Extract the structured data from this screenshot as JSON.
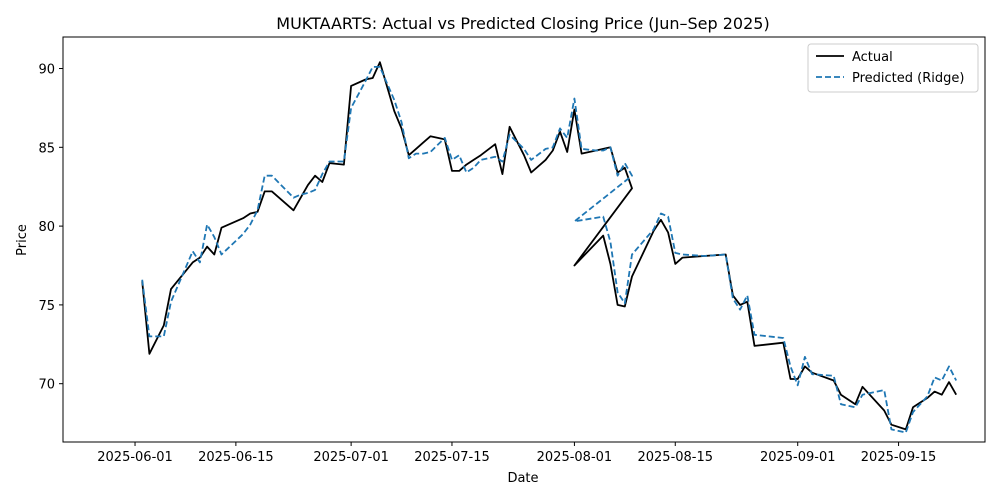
{
  "chart_data": {
    "type": "line",
    "title": "MUKTAARTS: Actual vs Predicted Closing Price (Jun–Sep 2025)",
    "xlabel": "Date",
    "ylabel": "Price",
    "x_ticks": [
      "2025-06-01",
      "2025-06-15",
      "2025-07-01",
      "2025-07-15",
      "2025-08-01",
      "2025-08-15",
      "2025-09-01",
      "2025-09-15"
    ],
    "y_ticks": [
      70,
      75,
      80,
      85,
      90
    ],
    "xlim": [
      "2025-05-22",
      "2025-09-27"
    ],
    "ylim": [
      66.3,
      92.0
    ],
    "grid": false,
    "legend_position": "top-right",
    "series": [
      {
        "name": "Actual",
        "color": "#000000",
        "style": "solid",
        "points": [
          [
            "2025-06-02",
            76.5
          ],
          [
            "2025-06-03",
            71.9
          ],
          [
            "2025-06-05",
            73.7
          ],
          [
            "2025-06-06",
            76.0
          ],
          [
            "2025-06-09",
            77.7
          ],
          [
            "2025-06-10",
            78.0
          ],
          [
            "2025-06-11",
            78.7
          ],
          [
            "2025-06-12",
            78.2
          ],
          [
            "2025-06-13",
            79.9
          ],
          [
            "2025-06-16",
            80.5
          ],
          [
            "2025-06-17",
            80.8
          ],
          [
            "2025-06-18",
            80.9
          ],
          [
            "2025-06-19",
            82.2
          ],
          [
            "2025-06-20",
            82.2
          ],
          [
            "2025-06-23",
            81.0
          ],
          [
            "2025-06-24",
            81.8
          ],
          [
            "2025-06-25",
            82.6
          ],
          [
            "2025-06-26",
            83.2
          ],
          [
            "2025-06-27",
            82.8
          ],
          [
            "2025-06-28",
            84.0
          ],
          [
            "2025-06-30",
            83.9
          ],
          [
            "2025-07-01",
            88.9
          ],
          [
            "2025-07-03",
            89.3
          ],
          [
            "2025-07-04",
            89.4
          ],
          [
            "2025-07-05",
            90.4
          ],
          [
            "2025-07-07",
            87.3
          ],
          [
            "2025-07-08",
            86.2
          ],
          [
            "2025-07-09",
            84.5
          ],
          [
            "2025-07-10",
            84.9
          ],
          [
            "2025-07-11",
            85.3
          ],
          [
            "2025-07-12",
            85.7
          ],
          [
            "2025-07-14",
            85.5
          ],
          [
            "2025-07-15",
            83.5
          ],
          [
            "2025-07-16",
            83.5
          ],
          [
            "2025-07-17",
            83.9
          ],
          [
            "2025-07-18",
            84.2
          ],
          [
            "2025-07-19",
            84.5
          ],
          [
            "2025-07-21",
            85.2
          ],
          [
            "2025-07-22",
            83.3
          ],
          [
            "2025-07-23",
            86.3
          ],
          [
            "2025-07-25",
            84.5
          ],
          [
            "2025-07-26",
            83.4
          ],
          [
            "2025-07-28",
            84.2
          ],
          [
            "2025-07-29",
            84.8
          ],
          [
            "2025-07-30",
            86.0
          ],
          [
            "2025-07-31",
            84.7
          ],
          [
            "2025-08-01",
            87.4
          ],
          [
            "2025-08-02",
            84.6
          ],
          [
            "2025-08-04",
            84.8
          ],
          [
            "2025-08-05",
            84.9
          ],
          [
            "2025-08-06",
            85.0
          ],
          [
            "2025-08-07",
            83.4
          ],
          [
            "2025-08-08",
            83.7
          ],
          [
            "2025-08-09",
            82.4
          ],
          [
            "2025-08-01",
            77.5
          ],
          [
            "2025-08-05",
            79.4
          ],
          [
            "2025-08-06",
            77.6
          ],
          [
            "2025-08-07",
            75.0
          ],
          [
            "2025-08-08",
            74.9
          ],
          [
            "2025-08-09",
            76.8
          ],
          [
            "2025-08-12",
            79.7
          ],
          [
            "2025-08-13",
            80.4
          ],
          [
            "2025-08-14",
            79.6
          ],
          [
            "2025-08-15",
            77.6
          ],
          [
            "2025-08-16",
            78.0
          ],
          [
            "2025-08-19",
            78.1
          ],
          [
            "2025-08-22",
            78.2
          ],
          [
            "2025-08-23",
            75.6
          ],
          [
            "2025-08-24",
            75.0
          ],
          [
            "2025-08-25",
            75.2
          ],
          [
            "2025-08-26",
            72.4
          ],
          [
            "2025-08-30",
            72.6
          ],
          [
            "2025-08-31",
            70.3
          ],
          [
            "2025-09-01",
            70.3
          ],
          [
            "2025-09-02",
            71.1
          ],
          [
            "2025-09-03",
            70.7
          ],
          [
            "2025-09-06",
            70.2
          ],
          [
            "2025-09-07",
            69.3
          ],
          [
            "2025-09-09",
            68.7
          ],
          [
            "2025-09-10",
            69.8
          ],
          [
            "2025-09-13",
            68.3
          ],
          [
            "2025-09-14",
            67.4
          ],
          [
            "2025-09-16",
            67.1
          ],
          [
            "2025-09-17",
            68.5
          ],
          [
            "2025-09-19",
            69.1
          ],
          [
            "2025-09-20",
            69.5
          ],
          [
            "2025-09-21",
            69.3
          ],
          [
            "2025-09-22",
            70.1
          ],
          [
            "2025-09-23",
            69.3
          ]
        ]
      },
      {
        "name": "Predicted (Ridge)",
        "color": "#1f77b4",
        "style": "dashed",
        "points": [
          [
            "2025-06-02",
            76.6
          ],
          [
            "2025-06-03",
            73.0
          ],
          [
            "2025-06-05",
            73.0
          ],
          [
            "2025-06-06",
            75.2
          ],
          [
            "2025-06-09",
            78.4
          ],
          [
            "2025-06-10",
            77.7
          ],
          [
            "2025-06-11",
            80.1
          ],
          [
            "2025-06-12",
            79.3
          ],
          [
            "2025-06-13",
            78.2
          ],
          [
            "2025-06-16",
            79.5
          ],
          [
            "2025-06-17",
            80.1
          ],
          [
            "2025-06-18",
            81.0
          ],
          [
            "2025-06-19",
            83.2
          ],
          [
            "2025-06-20",
            83.2
          ],
          [
            "2025-06-23",
            81.8
          ],
          [
            "2025-06-24",
            82.0
          ],
          [
            "2025-06-25",
            82.1
          ],
          [
            "2025-06-26",
            82.3
          ],
          [
            "2025-06-27",
            83.3
          ],
          [
            "2025-06-28",
            84.1
          ],
          [
            "2025-06-30",
            84.1
          ],
          [
            "2025-07-01",
            87.5
          ],
          [
            "2025-07-03",
            89.2
          ],
          [
            "2025-07-04",
            90.1
          ],
          [
            "2025-07-05",
            90.1
          ],
          [
            "2025-07-07",
            88.0
          ],
          [
            "2025-07-08",
            86.6
          ],
          [
            "2025-07-09",
            84.3
          ],
          [
            "2025-07-10",
            84.6
          ],
          [
            "2025-07-11",
            84.6
          ],
          [
            "2025-07-12",
            84.7
          ],
          [
            "2025-07-14",
            85.6
          ],
          [
            "2025-07-15",
            84.2
          ],
          [
            "2025-07-16",
            84.5
          ],
          [
            "2025-07-17",
            83.4
          ],
          [
            "2025-07-18",
            83.7
          ],
          [
            "2025-07-19",
            84.2
          ],
          [
            "2025-07-21",
            84.4
          ],
          [
            "2025-07-22",
            84.1
          ],
          [
            "2025-07-23",
            85.8
          ],
          [
            "2025-07-25",
            84.9
          ],
          [
            "2025-07-26",
            84.2
          ],
          [
            "2025-07-28",
            84.9
          ],
          [
            "2025-07-29",
            85.0
          ],
          [
            "2025-07-30",
            86.2
          ],
          [
            "2025-07-31",
            85.6
          ],
          [
            "2025-08-01",
            88.1
          ],
          [
            "2025-08-02",
            84.9
          ],
          [
            "2025-08-04",
            84.8
          ],
          [
            "2025-08-05",
            84.8
          ],
          [
            "2025-08-06",
            85.0
          ],
          [
            "2025-08-07",
            83.2
          ],
          [
            "2025-08-08",
            84.0
          ],
          [
            "2025-08-09",
            83.2
          ],
          [
            "2025-08-01",
            80.3
          ],
          [
            "2025-08-05",
            80.6
          ],
          [
            "2025-08-06",
            79.0
          ],
          [
            "2025-08-07",
            75.8
          ],
          [
            "2025-08-08",
            75.1
          ],
          [
            "2025-08-09",
            78.2
          ],
          [
            "2025-08-12",
            79.8
          ],
          [
            "2025-08-13",
            80.8
          ],
          [
            "2025-08-14",
            80.6
          ],
          [
            "2025-08-15",
            78.3
          ],
          [
            "2025-08-16",
            78.2
          ],
          [
            "2025-08-19",
            78.1
          ],
          [
            "2025-08-22",
            78.2
          ],
          [
            "2025-08-23",
            75.4
          ],
          [
            "2025-08-24",
            74.7
          ],
          [
            "2025-08-25",
            75.6
          ],
          [
            "2025-08-26",
            73.1
          ],
          [
            "2025-08-30",
            72.9
          ],
          [
            "2025-08-31",
            71.1
          ],
          [
            "2025-09-01",
            69.9
          ],
          [
            "2025-09-02",
            71.7
          ],
          [
            "2025-09-03",
            70.6
          ],
          [
            "2025-09-06",
            70.5
          ],
          [
            "2025-09-07",
            68.7
          ],
          [
            "2025-09-09",
            68.5
          ],
          [
            "2025-09-10",
            69.3
          ],
          [
            "2025-09-13",
            69.6
          ],
          [
            "2025-09-14",
            67.1
          ],
          [
            "2025-09-16",
            66.9
          ],
          [
            "2025-09-17",
            68.2
          ],
          [
            "2025-09-19",
            69.2
          ],
          [
            "2025-09-20",
            70.4
          ],
          [
            "2025-09-21",
            70.2
          ],
          [
            "2025-09-22",
            71.1
          ],
          [
            "2025-09-23",
            70.2
          ]
        ]
      }
    ]
  }
}
